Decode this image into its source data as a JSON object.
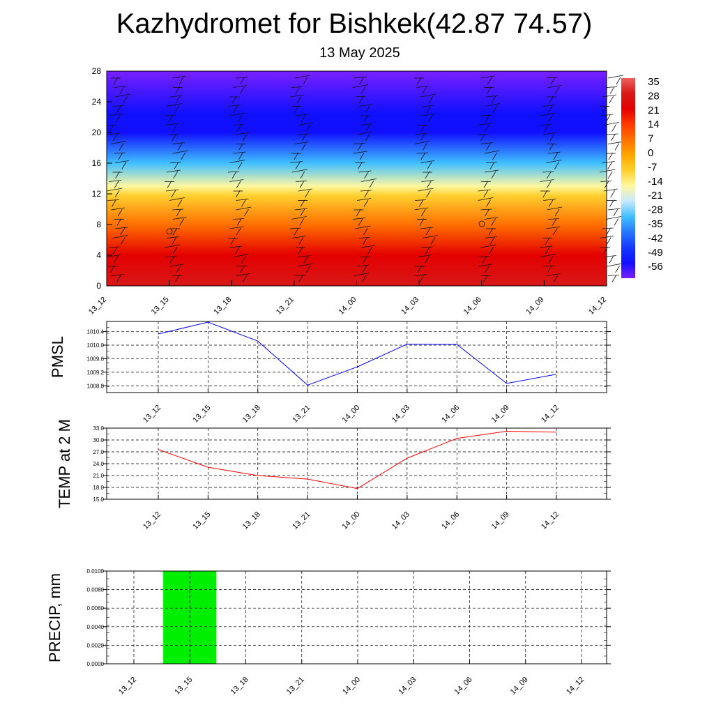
{
  "header": {
    "title": "Kazhydromet for Bishkek(42.87 74.57)",
    "date": "13 May 2025"
  },
  "colors": {
    "pmsl_line": "#0000ff",
    "temp_line": "#ff0000",
    "precip_bar": "#00ee00"
  },
  "chart_data": [
    {
      "type": "heatmap",
      "title": "Kazhydromet for Bishkek(42.87 74.57)",
      "subtitle": "13 May 2025",
      "x": [
        "13_12",
        "13_15",
        "13_18",
        "13_21",
        "14_00",
        "14_03",
        "14_06",
        "14_09",
        "14_12"
      ],
      "y_ticks": [
        0,
        4,
        8,
        12,
        16,
        20,
        24,
        28
      ],
      "ylim": [
        0,
        28
      ],
      "colorbar_labels": [
        "35",
        "28",
        "21",
        "14",
        "7",
        "0",
        "-7",
        "-14",
        "-21",
        "-28",
        "-35",
        "-42",
        "-49",
        "-56"
      ],
      "colorbar_stops": [
        "#ee6060",
        "#d81818",
        "#e40000",
        "#ff3a00",
        "#ff7000",
        "#ffa600",
        "#ffd030",
        "#fff8a0",
        "#c8e8ff",
        "#40c0ff",
        "#2878ff",
        "#1438ff",
        "#1010ff",
        "#7a20ff"
      ],
      "profile": [
        {
          "y": 0,
          "value": 28
        },
        {
          "y": 4,
          "value": 24
        },
        {
          "y": 8,
          "value": 8
        },
        {
          "y": 11.8,
          "value": -8
        },
        {
          "y": 13,
          "value": -15
        },
        {
          "y": 16,
          "value": -30
        },
        {
          "y": 20,
          "value": -50
        },
        {
          "y": 22.5,
          "value": -56
        },
        {
          "y": 28,
          "value": -60
        }
      ],
      "wind_barbs": "yes",
      "grid": false
    },
    {
      "type": "line",
      "ylabel": "PMSL",
      "x": [
        "13_12",
        "13_15",
        "13_18",
        "13_21",
        "14_00",
        "14_03",
        "14_06",
        "14_09",
        "14_12"
      ],
      "values": [
        1010.33,
        1010.68,
        1010.12,
        1008.82,
        1009.36,
        1010.03,
        1010.02,
        1008.87,
        1009.14
      ],
      "y_ticks": [
        "1008.8",
        "1009.2",
        "1009.6",
        "1010.0",
        "1010.4"
      ],
      "ylim": [
        1008.6,
        1010.7
      ],
      "grid": true
    },
    {
      "type": "line",
      "ylabel": "TEMP at 2 M",
      "x": [
        "13_12",
        "13_15",
        "13_18",
        "13_21",
        "14_00",
        "14_03",
        "14_06",
        "14_09",
        "14_12"
      ],
      "values": [
        27.6,
        23.1,
        21.0,
        20.1,
        17.7,
        25.4,
        30.4,
        32.2,
        32.0
      ],
      "y_ticks": [
        "15.0",
        "18.0",
        "21.0",
        "24.0",
        "27.0",
        "30.0",
        "33.0"
      ],
      "ylim": [
        15,
        33
      ],
      "grid": true
    },
    {
      "type": "bar",
      "ylabel": "PRECIP, mm",
      "x": [
        "13_12",
        "13_15",
        "13_18",
        "13_21",
        "14_00",
        "14_03",
        "14_06",
        "14_09",
        "14_12"
      ],
      "values": [
        0,
        0.01,
        0,
        0,
        0,
        0,
        0,
        0,
        0
      ],
      "y_ticks": [
        "0.0000",
        "0.0020",
        "0.0040",
        "0.0060",
        "0.0080",
        "0.0100"
      ],
      "ylim": [
        0,
        0.01
      ],
      "grid": true
    }
  ]
}
